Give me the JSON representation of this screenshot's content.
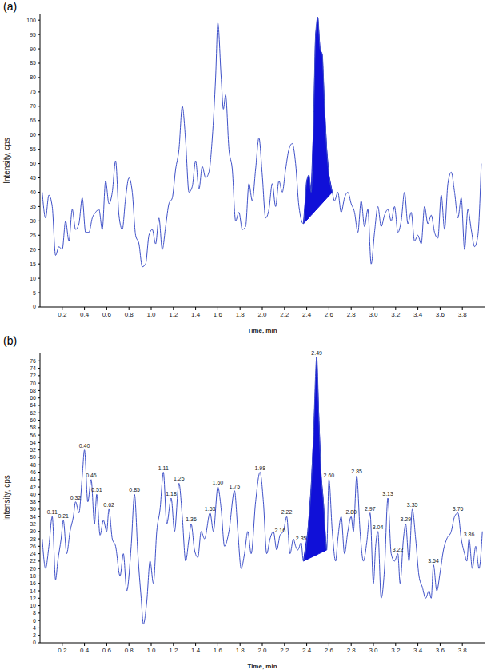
{
  "chart_data": [
    {
      "type": "line",
      "title": "(a)",
      "x_label": "Time, min",
      "y_label": "Intensity, cps",
      "xlim": [
        0,
        4
      ],
      "xticks": [
        0.2,
        0.4,
        0.6,
        0.8,
        {
          "value": 1,
          "label": "1.0"
        },
        1.2,
        1.4,
        1.6,
        1.8,
        {
          "value": 2,
          "label": "2.0"
        },
        2.2,
        2.4,
        2.6,
        2.8,
        {
          "value": 3,
          "label": "3.0"
        },
        3.2,
        3.4,
        3.6,
        3.8
      ],
      "ylim": [
        0,
        102
      ],
      "yticks": [
        0,
        5,
        10,
        15,
        20,
        25,
        30,
        35,
        40,
        45,
        50,
        55,
        60,
        65,
        70,
        75,
        80,
        85,
        90,
        95,
        100
      ],
      "x": [
        0.02,
        0.05,
        0.08,
        0.11,
        0.14,
        0.17,
        0.2,
        0.23,
        0.26,
        0.29,
        0.32,
        0.35,
        0.38,
        0.41,
        0.44,
        0.47,
        0.5,
        0.53,
        0.56,
        0.59,
        0.62,
        0.65,
        0.68,
        0.71,
        0.74,
        0.77,
        0.8,
        0.83,
        0.86,
        0.89,
        0.92,
        0.95,
        0.98,
        1.01,
        1.04,
        1.07,
        1.1,
        1.13,
        1.16,
        1.19,
        1.22,
        1.25,
        1.28,
        1.31,
        1.34,
        1.37,
        1.4,
        1.43,
        1.46,
        1.49,
        1.52,
        1.55,
        1.58,
        1.6,
        1.63,
        1.65,
        1.67,
        1.7,
        1.73,
        1.76,
        1.79,
        1.82,
        1.85,
        1.88,
        1.91,
        1.94,
        1.97,
        2.0,
        2.03,
        2.06,
        2.09,
        2.12,
        2.15,
        2.18,
        2.21,
        2.24,
        2.27,
        2.3,
        2.33,
        2.37,
        2.4,
        2.42,
        2.44,
        2.46,
        2.48,
        2.5,
        2.52,
        2.54,
        2.56,
        2.58,
        2.6,
        2.63,
        2.65,
        2.68,
        2.71,
        2.74,
        2.77,
        2.8,
        2.83,
        2.86,
        2.89,
        2.92,
        2.95,
        2.98,
        3.01,
        3.04,
        3.07,
        3.1,
        3.13,
        3.16,
        3.19,
        3.22,
        3.25,
        3.28,
        3.31,
        3.34,
        3.37,
        3.4,
        3.43,
        3.46,
        3.49,
        3.52,
        3.55,
        3.58,
        3.61,
        3.64,
        3.67,
        3.7,
        3.73,
        3.76,
        3.79,
        3.82,
        3.85,
        3.88,
        3.91,
        3.94,
        3.97
      ],
      "series": [
        {
          "color": "#3f51c8",
          "values": [
            40,
            31,
            39,
            35,
            18,
            21,
            20,
            30,
            23,
            34,
            27,
            29,
            38,
            26,
            26,
            31,
            33,
            34,
            27,
            44,
            36,
            40,
            51,
            32,
            27,
            38,
            45,
            40,
            25,
            22,
            14,
            15,
            25,
            27,
            22,
            31,
            20,
            28,
            36,
            38,
            48,
            55,
            70,
            58,
            40,
            42,
            51,
            41,
            49,
            45,
            47,
            59,
            80,
            99,
            80,
            69,
            74,
            55,
            48,
            30,
            33,
            27,
            28,
            43,
            37,
            48,
            59,
            46,
            31,
            34,
            43,
            35,
            44,
            40,
            48,
            55,
            57,
            50,
            35,
            29,
            44,
            46,
            40,
            62,
            95,
            101,
            90,
            88,
            70,
            55,
            46,
            40,
            37,
            40,
            33,
            38,
            40,
            36,
            33,
            26,
            37,
            28,
            34,
            15,
            26,
            35,
            28,
            32,
            34,
            30,
            35,
            26,
            30,
            40,
            29,
            33,
            23,
            25,
            22,
            35,
            29,
            32,
            26,
            24,
            39,
            27,
            43,
            47,
            40,
            31,
            38,
            20,
            34,
            27,
            21,
            25,
            50
          ]
        }
      ],
      "peak_area": {
        "x": [
          2.37,
          2.63
        ],
        "baseline": [
          29,
          40
        ],
        "color": "#1010d8"
      }
    },
    {
      "type": "line",
      "title": "(b)",
      "x_label": "Time, min",
      "y_label": "Intensity, cps",
      "xlim": [
        0,
        4
      ],
      "xticks": [
        0.2,
        0.4,
        0.6,
        0.8,
        {
          "value": 1,
          "label": "1.0"
        },
        1.2,
        1.4,
        1.6,
        1.8,
        {
          "value": 2,
          "label": "2.0"
        },
        2.2,
        2.4,
        2.6,
        2.8,
        {
          "value": 3,
          "label": "3.0"
        },
        3.2,
        3.4,
        3.6,
        3.8
      ],
      "ylim": [
        0,
        78
      ],
      "yticks": [
        0,
        2,
        4,
        6,
        8,
        10,
        12,
        14,
        16,
        18,
        20,
        22,
        24,
        26,
        28,
        30,
        32,
        34,
        36,
        38,
        40,
        42,
        44,
        46,
        48,
        50,
        52,
        54,
        56,
        58,
        60,
        62,
        64,
        66,
        68,
        70,
        72,
        74,
        76
      ],
      "x": [
        0.02,
        0.05,
        0.08,
        0.11,
        0.14,
        0.16,
        0.19,
        0.21,
        0.24,
        0.27,
        0.3,
        0.32,
        0.35,
        0.38,
        0.4,
        0.43,
        0.46,
        0.49,
        0.51,
        0.54,
        0.57,
        0.6,
        0.62,
        0.65,
        0.68,
        0.72,
        0.75,
        0.78,
        0.82,
        0.85,
        0.88,
        0.91,
        0.93,
        0.96,
        0.99,
        1.02,
        1.05,
        1.08,
        1.11,
        1.14,
        1.18,
        1.21,
        1.25,
        1.28,
        1.31,
        1.34,
        1.36,
        1.39,
        1.42,
        1.45,
        1.48,
        1.53,
        1.56,
        1.6,
        1.63,
        1.66,
        1.7,
        1.75,
        1.78,
        1.81,
        1.84,
        1.87,
        1.9,
        1.94,
        1.98,
        2.01,
        2.04,
        2.07,
        2.1,
        2.13,
        2.16,
        2.19,
        2.22,
        2.25,
        2.28,
        2.3,
        2.32,
        2.35,
        2.37,
        2.41,
        2.44,
        2.46,
        2.49,
        2.51,
        2.53,
        2.55,
        2.57,
        2.58,
        2.6,
        2.63,
        2.66,
        2.68,
        2.71,
        2.74,
        2.77,
        2.8,
        2.82,
        2.85,
        2.88,
        2.91,
        2.94,
        2.97,
        3.0,
        3.02,
        3.04,
        3.07,
        3.1,
        3.13,
        3.16,
        3.19,
        3.22,
        3.24,
        3.27,
        3.29,
        3.32,
        3.35,
        3.38,
        3.41,
        3.44,
        3.47,
        3.5,
        3.52,
        3.54,
        3.57,
        3.6,
        3.63,
        3.66,
        3.7,
        3.73,
        3.76,
        3.79,
        3.82,
        3.84,
        3.86,
        3.89,
        3.92,
        3.95,
        3.98
      ],
      "series": [
        {
          "color": "#3f51c8",
          "values": [
            28,
            20,
            26,
            34,
            17,
            22,
            28,
            33,
            24,
            30,
            34,
            38,
            35,
            45,
            52,
            38,
            44,
            32,
            40,
            29,
            33,
            30,
            36,
            28,
            26,
            18,
            24,
            14,
            26,
            40,
            24,
            12,
            5,
            11,
            22,
            16,
            30,
            36,
            46,
            32,
            39,
            30,
            43,
            34,
            22,
            28,
            32,
            25,
            23,
            30,
            28,
            35,
            30,
            42,
            36,
            26,
            30,
            41,
            30,
            20,
            24,
            30,
            24,
            38,
            46,
            38,
            24,
            28,
            30,
            25,
            29,
            30,
            34,
            24,
            28,
            26,
            25,
            27,
            22,
            30,
            42,
            55,
            77,
            60,
            45,
            38,
            28,
            25,
            44,
            30,
            22,
            28,
            34,
            24,
            30,
            34,
            30,
            45,
            30,
            22,
            27,
            35,
            16,
            26,
            30,
            12,
            20,
            39,
            24,
            22,
            24,
            16,
            28,
            32,
            22,
            36,
            28,
            18,
            15,
            12,
            14,
            12,
            21,
            14,
            19,
            25,
            28,
            30,
            34,
            35,
            28,
            24,
            22,
            28,
            20,
            26,
            20,
            30
          ]
        }
      ],
      "peak_area": {
        "x": [
          2.37,
          2.58
        ],
        "baseline": [
          22,
          25
        ],
        "color": "#1010d8"
      },
      "annotations": [
        {
          "x": 0.11,
          "y": 34,
          "label": "0.11"
        },
        {
          "x": 0.21,
          "y": 33,
          "label": "0.21"
        },
        {
          "x": 0.32,
          "y": 38,
          "label": "0.32"
        },
        {
          "x": 0.4,
          "y": 52,
          "label": "0.40"
        },
        {
          "x": 0.46,
          "y": 44,
          "label": "0.46"
        },
        {
          "x": 0.51,
          "y": 40,
          "label": "0.51"
        },
        {
          "x": 0.62,
          "y": 36,
          "label": "0.62"
        },
        {
          "x": 0.85,
          "y": 40,
          "label": "0.85"
        },
        {
          "x": 1.11,
          "y": 46,
          "label": "1.11"
        },
        {
          "x": 1.18,
          "y": 39,
          "label": "1.18"
        },
        {
          "x": 1.25,
          "y": 43,
          "label": "1.25"
        },
        {
          "x": 1.36,
          "y": 32,
          "label": "1.36"
        },
        {
          "x": 1.53,
          "y": 35,
          "label": "1.53"
        },
        {
          "x": 1.6,
          "y": 42,
          "label": "1.60"
        },
        {
          "x": 1.75,
          "y": 41,
          "label": "1.75"
        },
        {
          "x": 1.98,
          "y": 46,
          "label": "1.98"
        },
        {
          "x": 2.16,
          "y": 29,
          "label": "2.16"
        },
        {
          "x": 2.22,
          "y": 34,
          "label": "2.22"
        },
        {
          "x": 2.35,
          "y": 27,
          "label": "2.35"
        },
        {
          "x": 2.49,
          "y": 77,
          "label": "2.49"
        },
        {
          "x": 2.6,
          "y": 44,
          "label": "2.60"
        },
        {
          "x": 2.8,
          "y": 34,
          "label": "2.80"
        },
        {
          "x": 2.85,
          "y": 45,
          "label": "2.85"
        },
        {
          "x": 2.97,
          "y": 35,
          "label": "2.97"
        },
        {
          "x": 3.04,
          "y": 30,
          "label": "3.04"
        },
        {
          "x": 3.13,
          "y": 39,
          "label": "3.13"
        },
        {
          "x": 3.22,
          "y": 24,
          "label": "3.22"
        },
        {
          "x": 3.29,
          "y": 32,
          "label": "3.29"
        },
        {
          "x": 3.35,
          "y": 36,
          "label": "3.35"
        },
        {
          "x": 3.54,
          "y": 21,
          "label": "3.54"
        },
        {
          "x": 3.76,
          "y": 35,
          "label": "3.76"
        },
        {
          "x": 3.86,
          "y": 28,
          "label": "3.86"
        }
      ]
    }
  ]
}
